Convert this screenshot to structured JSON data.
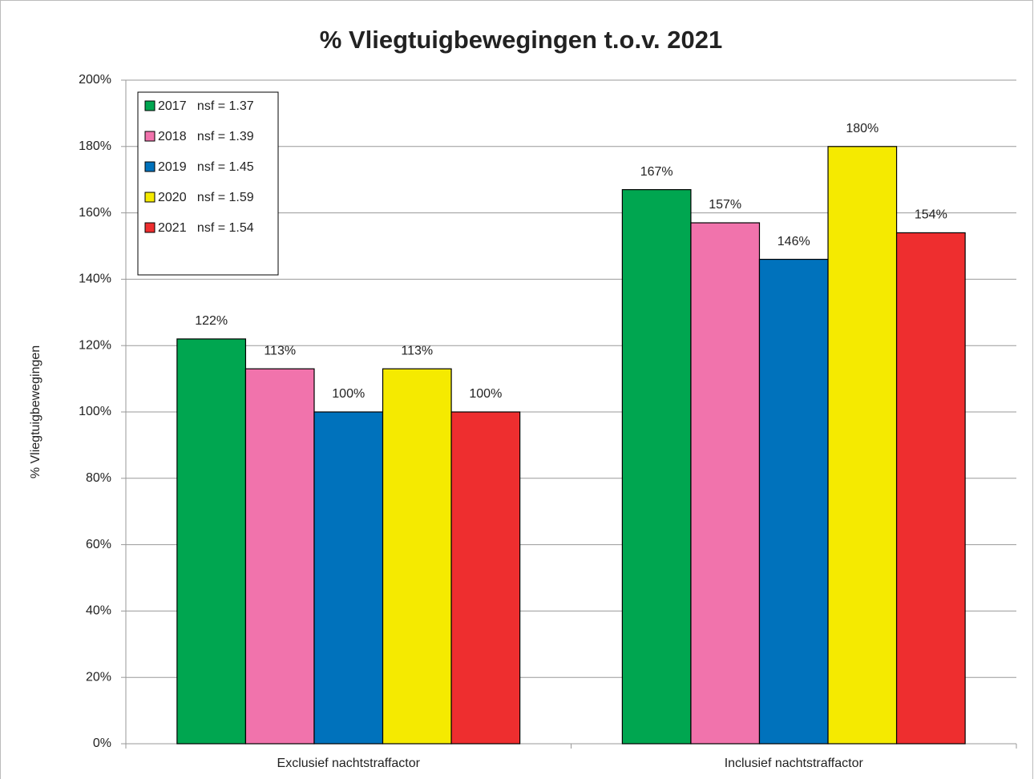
{
  "chart_data": {
    "type": "bar",
    "title": "% Vliegtuigbewegingen t.o.v. 2021",
    "y_label": "% Vliegtuigbewegingen",
    "categories": [
      "Exclusief nachtstraffactor",
      "Inclusief nachtstraffactor"
    ],
    "series": [
      {
        "name": "2017   nsf = 1.37",
        "color": "#00a650",
        "values": [
          122,
          167
        ],
        "value_labels": [
          "122%",
          "167%"
        ]
      },
      {
        "name": "2018   nsf = 1.39",
        "color": "#f173ac",
        "values": [
          113,
          157
        ],
        "value_labels": [
          "113%",
          "157%"
        ]
      },
      {
        "name": "2019   nsf = 1.45",
        "color": "#0072bc",
        "values": [
          100,
          146
        ],
        "value_labels": [
          "100%",
          "146%"
        ]
      },
      {
        "name": "2020   nsf = 1.59",
        "color": "#f5ea00",
        "values": [
          113,
          180
        ],
        "value_labels": [
          "113%",
          "180%"
        ]
      },
      {
        "name": "2021   nsf = 1.54",
        "color": "#ee2e2f",
        "values": [
          100,
          154
        ],
        "value_labels": [
          "100%",
          "154%"
        ]
      }
    ],
    "ylim": [
      0,
      200
    ],
    "yticks": [
      {
        "value": 0,
        "label": "0%"
      },
      {
        "value": 20,
        "label": "20%"
      },
      {
        "value": 40,
        "label": "40%"
      },
      {
        "value": 60,
        "label": "60%"
      },
      {
        "value": 80,
        "label": "80%"
      },
      {
        "value": 100,
        "label": "100%"
      },
      {
        "value": 120,
        "label": "120%"
      },
      {
        "value": 140,
        "label": "140%"
      },
      {
        "value": 160,
        "label": "160%"
      },
      {
        "value": 180,
        "label": "180%"
      },
      {
        "value": 200,
        "label": "200%"
      }
    ],
    "grid": true,
    "legend": "top-left"
  }
}
